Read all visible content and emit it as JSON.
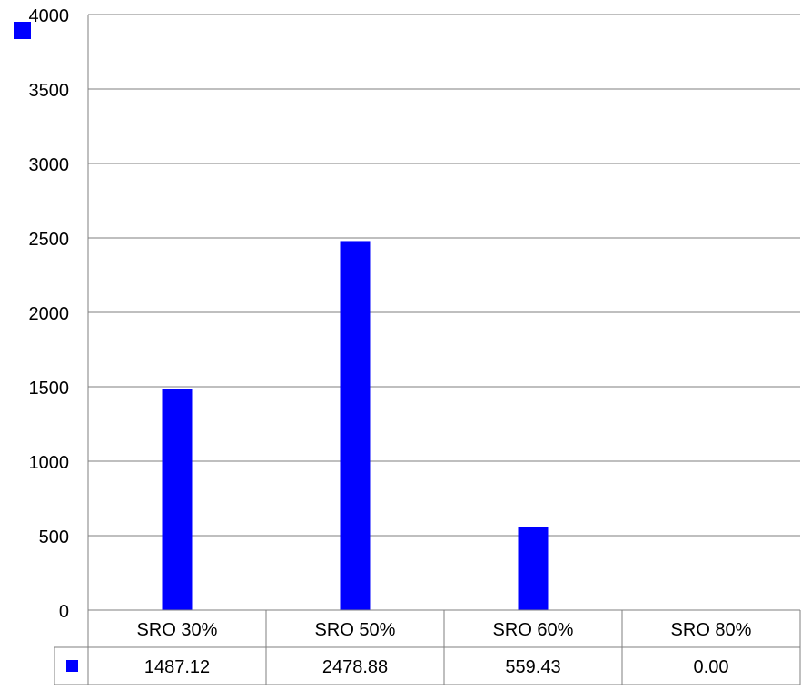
{
  "chart_data": {
    "type": "bar",
    "title": "",
    "xlabel": "",
    "ylabel": "",
    "ylim": [
      0,
      4000
    ],
    "yticks": [
      0,
      500,
      1000,
      1500,
      2000,
      2500,
      3000,
      3500,
      4000
    ],
    "grid": true,
    "legend": "top-left",
    "data_table": true,
    "categories": [
      "SRO 30%",
      "SRO 50%",
      "SRO 60%",
      "SRO 80%"
    ],
    "series": [
      {
        "values": [
          1487.12,
          2478.88,
          559.43,
          0.0
        ],
        "value_labels": [
          "1487.12",
          "2478.88",
          "559.43",
          "0.00"
        ],
        "color": "#0000FF"
      }
    ],
    "colors": {
      "bar": "#0000FF",
      "gridline": "#7F7F7F",
      "axis": "#7F7F7F",
      "text": "#000000"
    }
  }
}
